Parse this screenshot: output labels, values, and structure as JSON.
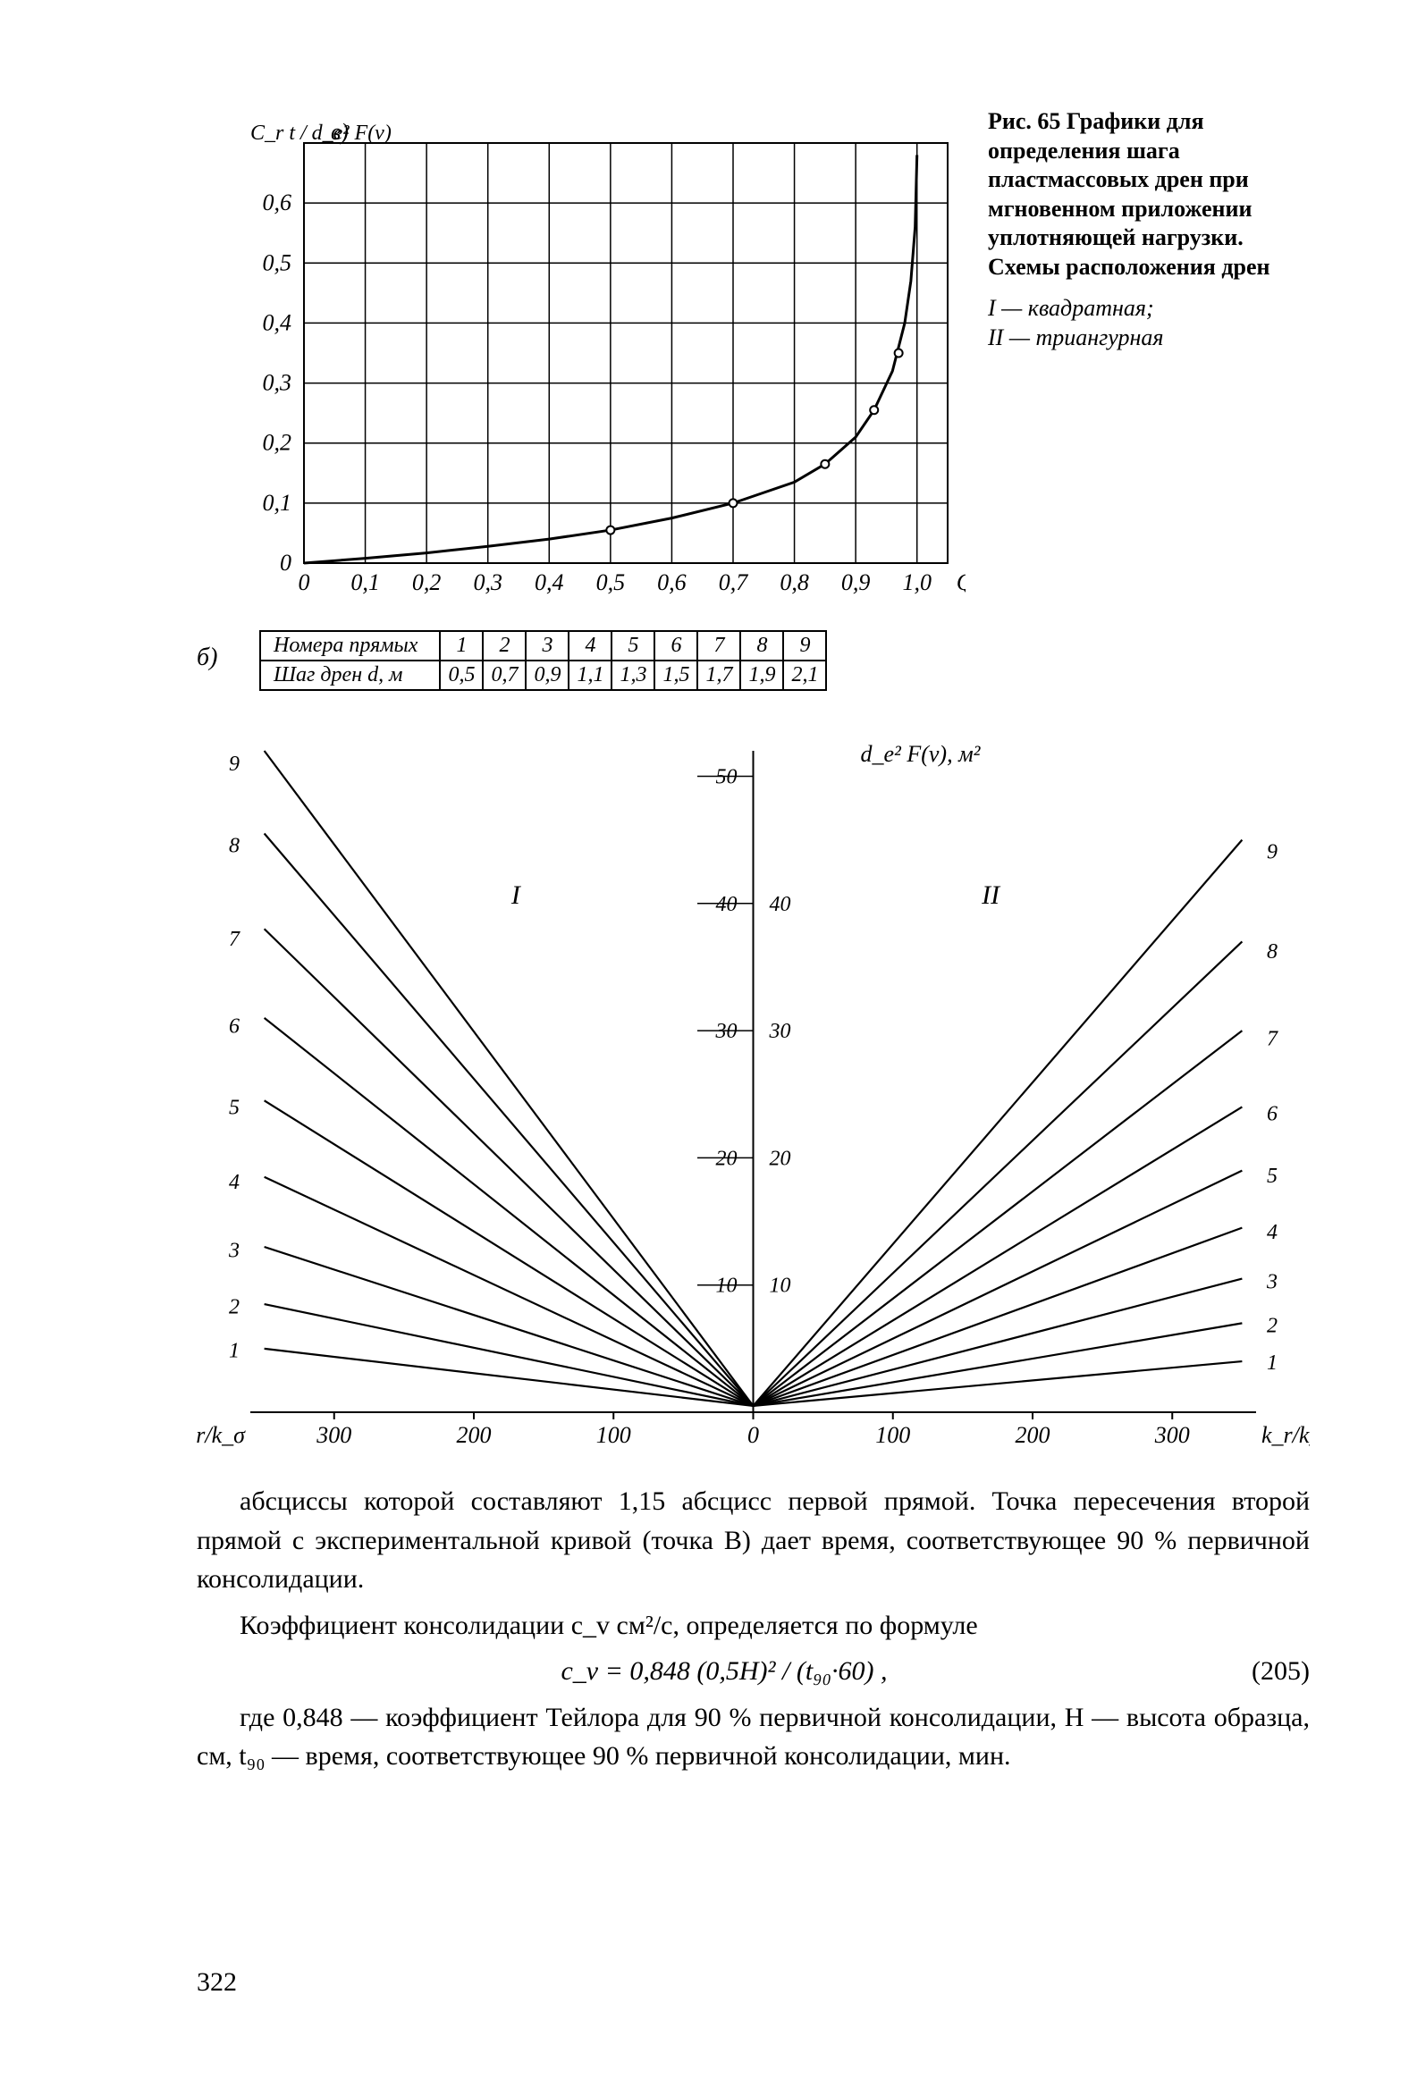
{
  "caption": {
    "fig_label": "Рис. 65",
    "title": "Графики для определения шага пластмассовых дрен при мгновенном приложении уплотняющей нагрузки. Схемы расположения дрен",
    "legend1_sym": "I",
    "legend1_txt": "— квадратная;",
    "legend2_sym": "II",
    "legend2_txt": "— триангурная"
  },
  "chartA": {
    "type": "line",
    "label_corner_top": "в)",
    "ylabel": "C_r t / d_e² F(ν)",
    "xlim": [
      0,
      1.05
    ],
    "ylim": [
      0,
      0.7
    ],
    "xticks": [
      "0",
      "0,1",
      "0,2",
      "0,3",
      "0,4",
      "0,5",
      "0,6",
      "0,7",
      "0,8",
      "0,9",
      "1,0"
    ],
    "yticks": [
      "0",
      "0,1",
      "0,2",
      "0,3",
      "0,4",
      "0,5",
      "0,6"
    ],
    "xend_label": "Q_r",
    "gridcolor": "#000",
    "bg": "#fff",
    "curve": [
      [
        0.0,
        0.0
      ],
      [
        0.1,
        0.008
      ],
      [
        0.2,
        0.017
      ],
      [
        0.3,
        0.028
      ],
      [
        0.4,
        0.04
      ],
      [
        0.5,
        0.055
      ],
      [
        0.6,
        0.075
      ],
      [
        0.7,
        0.1
      ],
      [
        0.8,
        0.135
      ],
      [
        0.85,
        0.165
      ],
      [
        0.9,
        0.21
      ],
      [
        0.93,
        0.255
      ],
      [
        0.96,
        0.32
      ],
      [
        0.98,
        0.4
      ],
      [
        0.99,
        0.47
      ],
      [
        0.997,
        0.56
      ],
      [
        1.0,
        0.68
      ]
    ],
    "markers": [
      [
        0.5,
        0.055
      ],
      [
        0.7,
        0.1
      ],
      [
        0.85,
        0.165
      ],
      [
        0.93,
        0.255
      ],
      [
        0.97,
        0.35
      ]
    ],
    "linewidth": 3
  },
  "table": {
    "panel_label": "б)",
    "row1_label": "Номера прямых",
    "row2_label": "Шаг дрен d, м",
    "nums": [
      "1",
      "2",
      "3",
      "4",
      "5",
      "6",
      "7",
      "8",
      "9"
    ],
    "steps": [
      "0,5",
      "0,7",
      "0,9",
      "1,1",
      "1,3",
      "1,5",
      "1,7",
      "1,9",
      "2,1"
    ]
  },
  "chartB": {
    "type": "line-fan",
    "center_top_label": "d_e² F(ν), м²",
    "left_region": "I",
    "right_region": "II",
    "xlabel_left": "k_r/k_σ",
    "xlabel_right": "k_r/k_σ",
    "xlim": [
      -360,
      360
    ],
    "xticks_left": [
      "300",
      "200",
      "100",
      "0"
    ],
    "xticks_right": [
      "100",
      "200",
      "300"
    ],
    "ylim": [
      0,
      52
    ],
    "yticks_center": [
      "10",
      "20",
      "30",
      "40",
      "50"
    ],
    "yticks_center2": [
      "10",
      "20",
      "30",
      "40"
    ],
    "ylabels_left": [
      "1",
      "2",
      "3",
      "4",
      "5",
      "6",
      "7",
      "8",
      "9"
    ],
    "linewidth": 2.2,
    "gridcolor": "#000",
    "left_fan_x0": 0,
    "left_fan_xend": -350,
    "left_heights_at_xend": [
      5.0,
      8.5,
      13.0,
      18.5,
      24.5,
      31.0,
      38.0,
      45.5,
      53.0
    ],
    "right_fan_x0": 0,
    "right_fan_xend": 350,
    "right_heights_at_xend": [
      4.0,
      7.0,
      10.5,
      14.5,
      19.0,
      24.0,
      30.0,
      37.0,
      45.0
    ]
  },
  "text": {
    "p1": "абсциссы которой составляют 1,15 абсцисс первой прямой. Точка пересечения второй прямой с экспериментальной кривой (точка В) дает время, соответствующее 90 % первичной консолидации.",
    "p2": "Коэффициент консолидации c_v см²/с, определяется по формуле",
    "eq": "c_v = 0,848 (0,5H)² / (t₉₀·60) ,",
    "eq_num": "(205)",
    "p3": "где 0,848 — коэффициент Тейлора для 90 % первичной консолидации, H — высота образца, см, t₉₀ — время, соответствующее 90 % первичной консолидации, мин."
  },
  "page_number": "322"
}
